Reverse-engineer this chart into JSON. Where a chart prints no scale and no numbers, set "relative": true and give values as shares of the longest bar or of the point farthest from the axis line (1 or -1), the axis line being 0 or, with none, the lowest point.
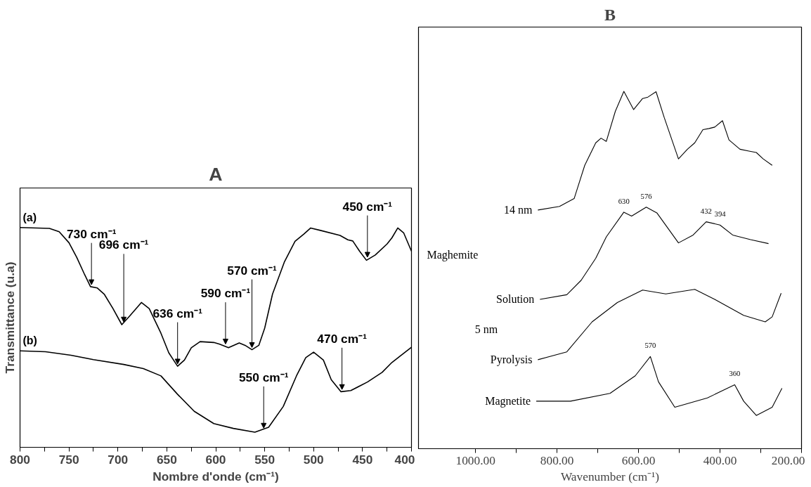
{
  "chart_data": [
    {
      "type": "line",
      "title": "A",
      "xlabel": "Nombre d'onde (cm⁻¹)",
      "ylabel": "Transmittance (u.a)",
      "relative": true,
      "tick_labels": "x",
      "xlim": [
        800,
        400
      ],
      "xticks": [
        800,
        {
          "value": 775,
          "label": null
        },
        750,
        {
          "value": 725,
          "label": null
        },
        700,
        {
          "value": 675,
          "label": null
        },
        650,
        {
          "value": 625,
          "label": null
        },
        600,
        {
          "value": 575,
          "label": null
        },
        550,
        {
          "value": 525,
          "label": null
        },
        500,
        {
          "value": 475,
          "label": null
        },
        450,
        {
          "value": 425,
          "label": null
        },
        400
      ],
      "series": [
        {
          "name": "(a)",
          "color": "#000000",
          "x": [
            800,
            770,
            760,
            750,
            742,
            734,
            728,
            721,
            714,
            705,
            696,
            688,
            676,
            668,
            656,
            648,
            639,
            632,
            625,
            616,
            602,
            596,
            587,
            576,
            570,
            563,
            556,
            550,
            542,
            530,
            519,
            510,
            503,
            493,
            473,
            465,
            460,
            453,
            446,
            437,
            425,
            420,
            414,
            408,
            400
          ],
          "values": [
            1.0,
            0.996,
            0.981,
            0.931,
            0.864,
            0.786,
            0.731,
            0.725,
            0.697,
            0.631,
            0.558,
            0.597,
            0.659,
            0.631,
            0.519,
            0.43,
            0.369,
            0.397,
            0.453,
            0.481,
            0.477,
            0.469,
            0.453,
            0.475,
            0.464,
            0.444,
            0.464,
            0.542,
            0.697,
            0.842,
            0.937,
            0.97,
            0.998,
            0.987,
            0.964,
            0.944,
            0.939,
            0.892,
            0.851,
            0.875,
            0.925,
            0.953,
            0.998,
            0.976,
            0.892
          ]
        },
        {
          "name": "(b)",
          "color": "#000000",
          "x": [
            800,
            774,
            748,
            725,
            694,
            674,
            656,
            639,
            622,
            602,
            582,
            560,
            546,
            531,
            517,
            508,
            500,
            490,
            482,
            472,
            462,
            445,
            430,
            420,
            400
          ],
          "values": [
            0.439,
            0.435,
            0.419,
            0.399,
            0.377,
            0.358,
            0.325,
            0.241,
            0.164,
            0.108,
            0.086,
            0.069,
            0.091,
            0.186,
            0.33,
            0.408,
            0.433,
            0.397,
            0.308,
            0.253,
            0.258,
            0.297,
            0.341,
            0.386,
            0.455
          ]
        }
      ],
      "annotations": [
        {
          "text": "730 cm⁻¹",
          "x": 727,
          "y": 0.73
        },
        {
          "text": "696 cm⁻¹",
          "x": 694,
          "y": 0.56
        },
        {
          "text": "636 cm⁻¹",
          "x": 639,
          "y": 0.369
        },
        {
          "text": "590 cm⁻¹",
          "x": 590,
          "y": 0.46
        },
        {
          "text": "570 cm⁻¹",
          "x": 563,
          "y": 0.444
        },
        {
          "text": "450 cm⁻¹",
          "x": 445,
          "y": 0.855
        },
        {
          "text": "550 cm⁻¹",
          "x": 551,
          "y": 0.077
        },
        {
          "text": "470 cm⁻¹",
          "x": 471,
          "y": 0.253
        }
      ]
    },
    {
      "type": "line",
      "title": "B",
      "xlabel": "Wavenumber (cm⁻¹)",
      "relative": true,
      "tick_labels": "x",
      "xlim": [
        1140,
        200
      ],
      "xticks": [
        {
          "value": 1000,
          "label": "1000.00"
        },
        {
          "value": 900,
          "label": null
        },
        {
          "value": 800,
          "label": "800.00"
        },
        {
          "value": 700,
          "label": null
        },
        {
          "value": 600,
          "label": "600.00"
        },
        {
          "value": 500,
          "label": null
        },
        {
          "value": 400,
          "label": "400.00"
        },
        {
          "value": 300,
          "label": null
        },
        {
          "value": 200,
          "label": "200.00"
        }
      ],
      "series": [
        {
          "name": "14 nm",
          "color": "#000000",
          "x": [
            847,
            794,
            758,
            732,
            705,
            692,
            679,
            657,
            636,
            612,
            590,
            577,
            557,
            537,
            502,
            480,
            462,
            442,
            427,
            413,
            394,
            378,
            351,
            329,
            311,
            294,
            272
          ],
          "values": [
            0.668,
            0.678,
            0.7,
            0.793,
            0.856,
            0.869,
            0.86,
            0.944,
            1.0,
            0.949,
            0.98,
            0.984,
            0.999,
            0.927,
            0.811,
            0.838,
            0.856,
            0.893,
            0.896,
            0.9,
            0.918,
            0.864,
            0.838,
            0.833,
            0.829,
            0.811,
            0.793
          ]
        },
        {
          "name": "Solution",
          "color": "#000000",
          "x": [
            842,
            776,
            741,
            705,
            679,
            636,
            617,
            581,
            555,
            502,
            466,
            434,
            400,
            369,
            325,
            281
          ],
          "values": [
            0.418,
            0.431,
            0.471,
            0.533,
            0.593,
            0.662,
            0.651,
            0.676,
            0.66,
            0.576,
            0.598,
            0.635,
            0.626,
            0.598,
            0.585,
            0.574
          ]
        },
        {
          "name": "Pyrolysis",
          "color": "#000000",
          "x": [
            847,
            776,
            714,
            652,
            590,
            533,
            462,
            413,
            342,
            289,
            272,
            250
          ],
          "values": [
            0.249,
            0.271,
            0.355,
            0.409,
            0.444,
            0.433,
            0.446,
            0.418,
            0.373,
            0.355,
            0.369,
            0.435
          ]
        },
        {
          "name": "Magnetite",
          "color": "#000000",
          "x": [
            851,
            767,
            670,
            608,
            571,
            551,
            511,
            431,
            364,
            342,
            311,
            272,
            248
          ],
          "values": [
            0.133,
            0.133,
            0.155,
            0.204,
            0.258,
            0.187,
            0.116,
            0.142,
            0.179,
            0.133,
            0.093,
            0.116,
            0.169
          ]
        }
      ],
      "annotations": [
        "Maghemite",
        "5 nm",
        {
          "text": "630",
          "x": 636,
          "y": 0.662
        },
        {
          "text": "576",
          "x": 581,
          "y": 0.676
        },
        {
          "text": "432",
          "x": 434,
          "y": 0.635
        },
        {
          "text": "394",
          "x": 400,
          "y": 0.626
        },
        {
          "text": "570",
          "x": 571,
          "y": 0.258
        },
        {
          "text": "360",
          "x": 364,
          "y": 0.179
        }
      ]
    }
  ]
}
